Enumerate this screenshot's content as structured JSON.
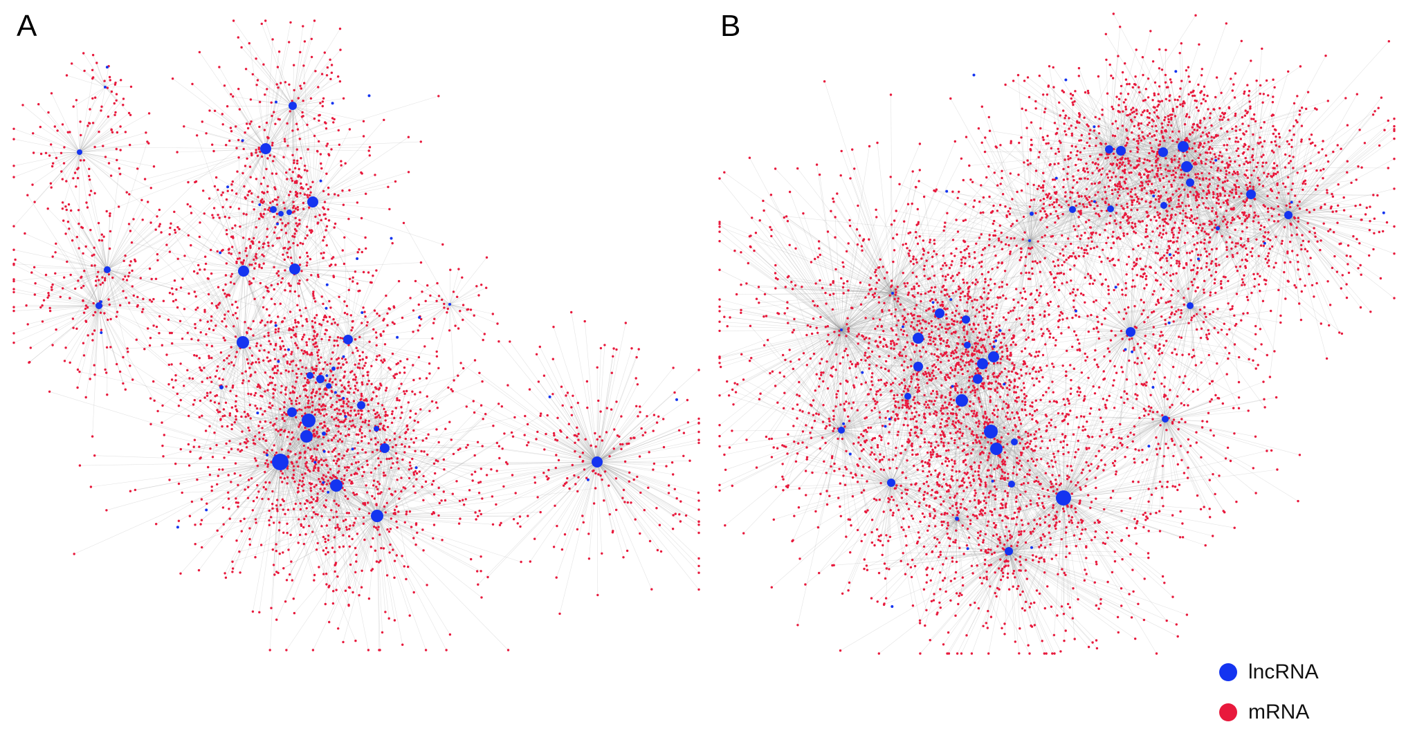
{
  "panels": [
    {
      "label": "A"
    },
    {
      "label": "B"
    }
  ],
  "legend": {
    "items": [
      {
        "label": "lncRNA",
        "color": "#1434f0"
      },
      {
        "label": "mRNA",
        "color": "#e8193c"
      }
    ]
  },
  "colors": {
    "edge": "#9a9a9a",
    "lncrna": "#1434f0",
    "mrna": "#e8193c"
  }
}
